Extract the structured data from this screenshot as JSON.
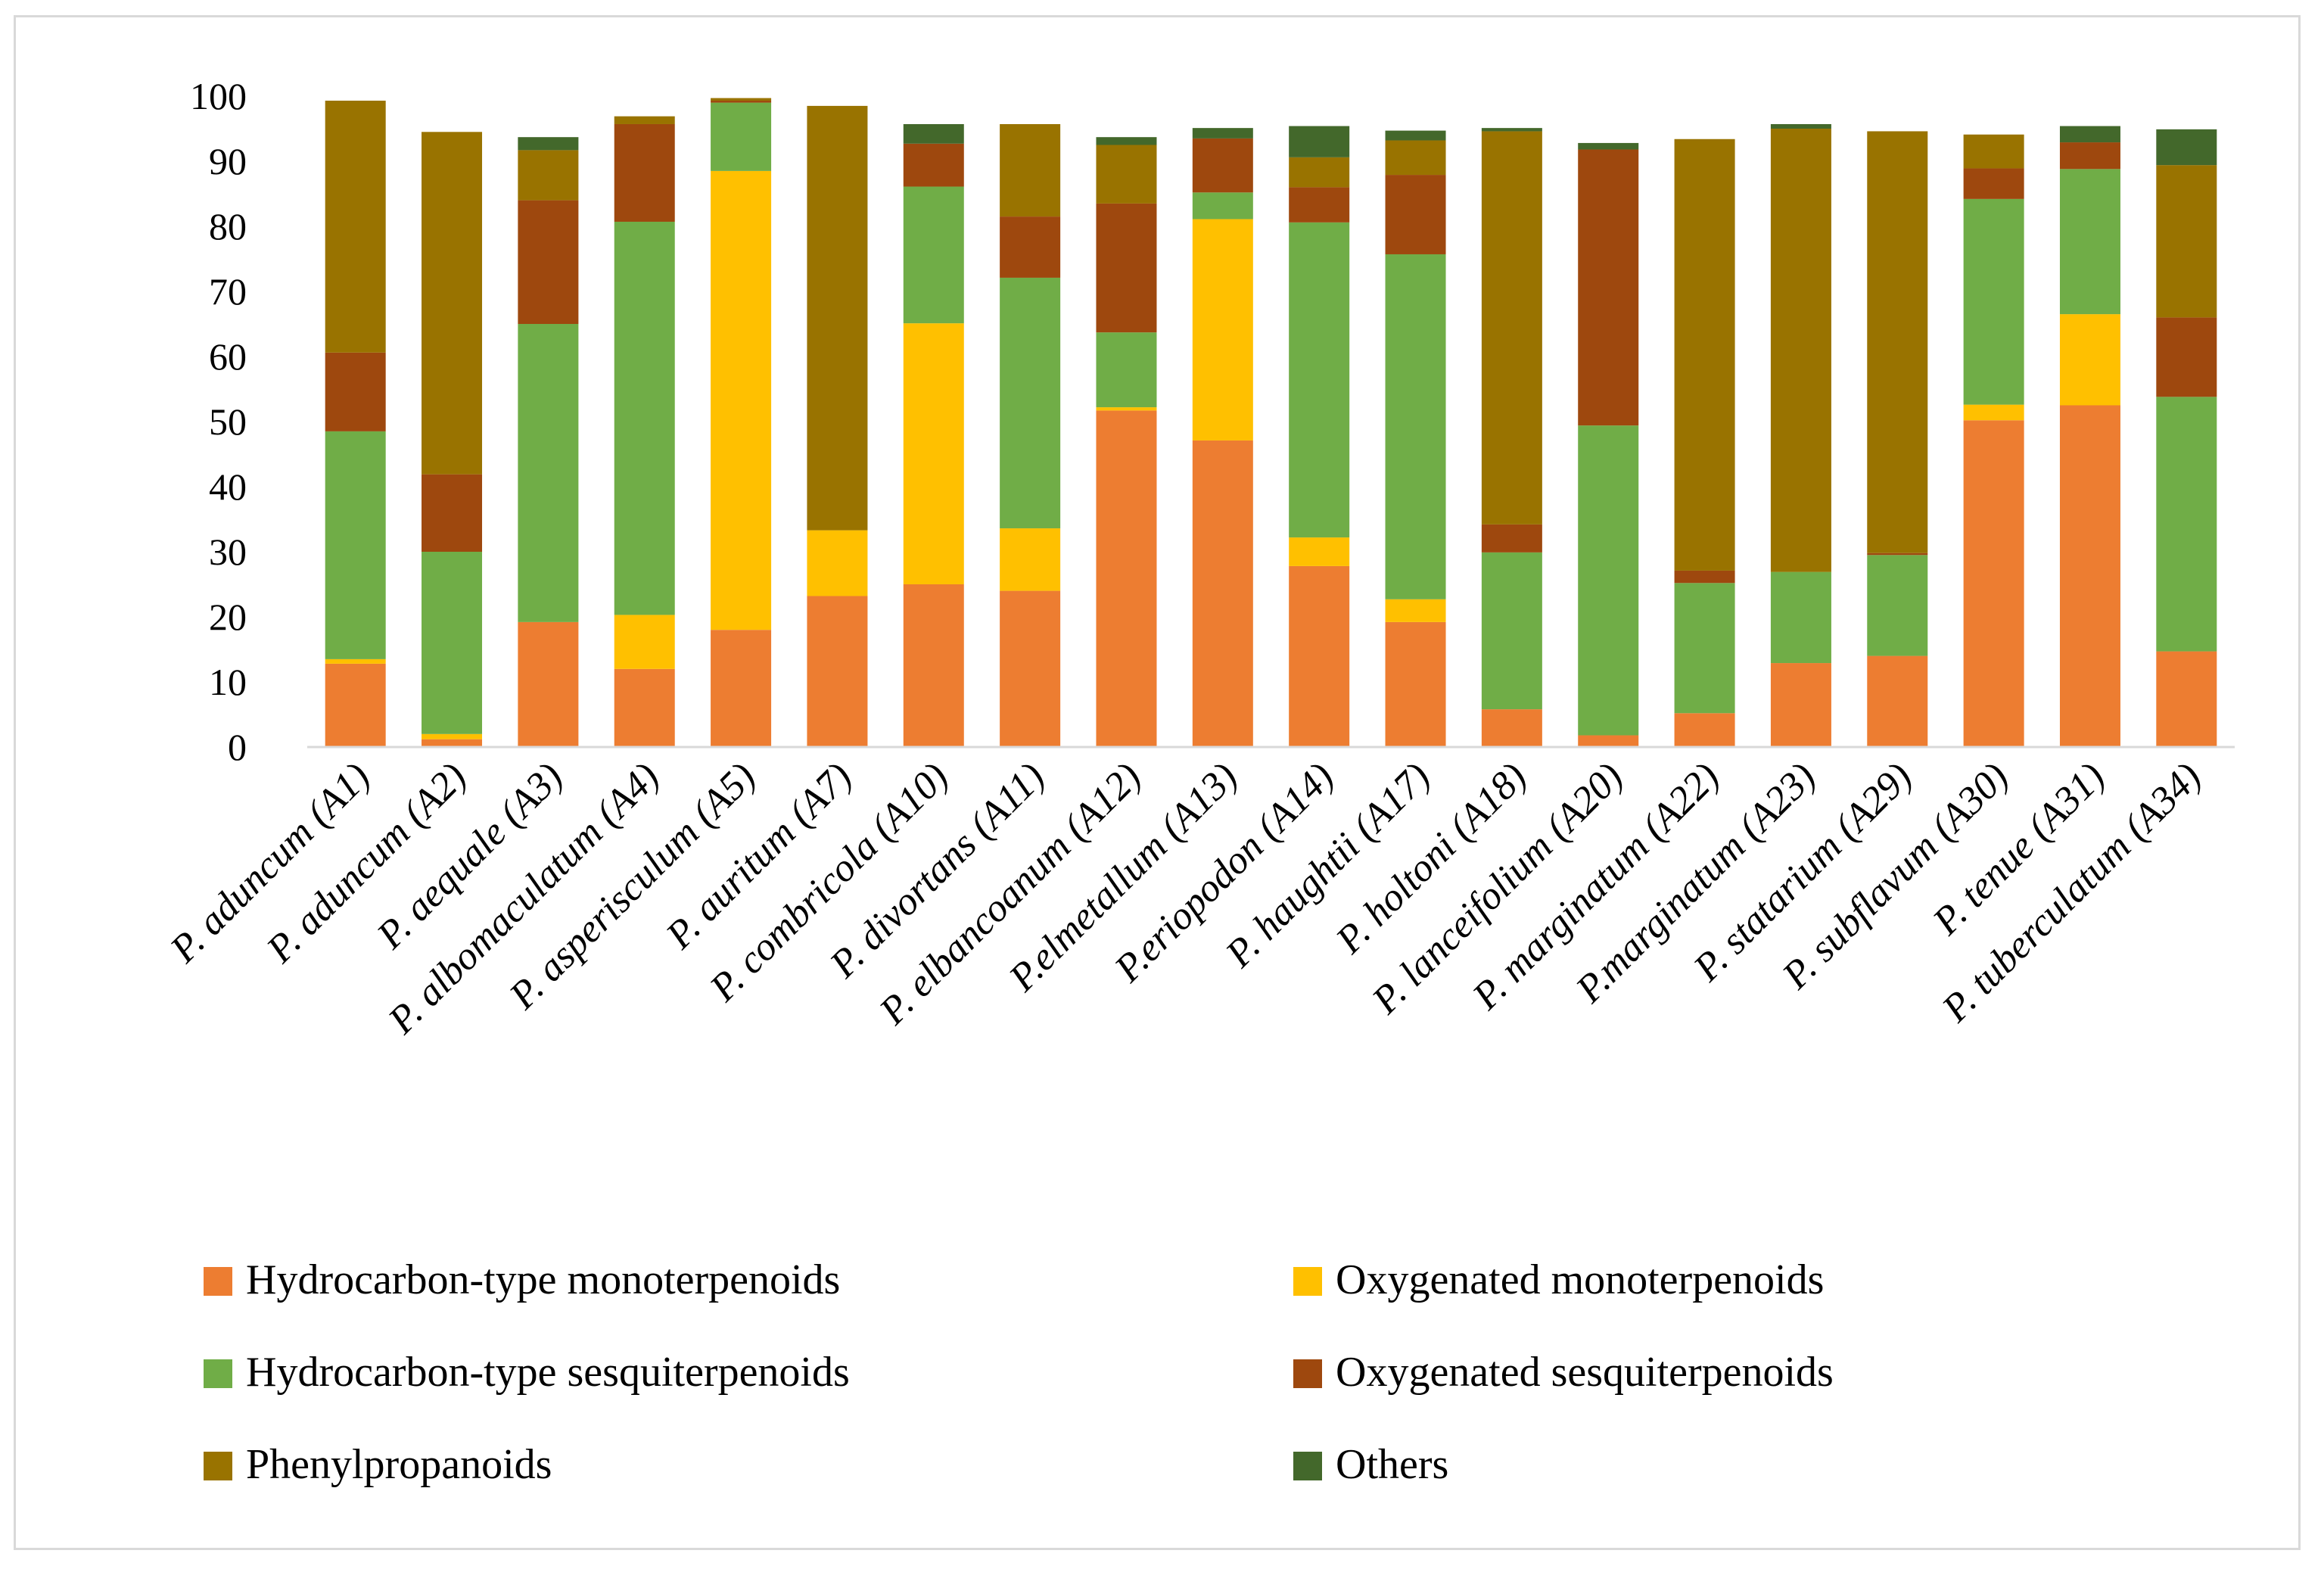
{
  "chart_data": {
    "type": "bar",
    "stacked": true,
    "title": "",
    "xlabel": "",
    "ylabel": "",
    "ylim": [
      0,
      100
    ],
    "yticks": [
      0,
      10,
      20,
      30,
      40,
      50,
      60,
      70,
      80,
      90,
      100
    ],
    "grid": false,
    "legend_position": "bottom",
    "categories": [
      "P. aduncum (A1)",
      "P. aduncum (A2)",
      "P. aequale (A3)",
      "P. albomaculatum (A4)",
      "P. asperisculum (A5)",
      "P. auritum (A7)",
      "P. combricola (A10)",
      "P. divortans (A11)",
      "P. elbancoanum (A12)",
      "P.elmetallum (A13)",
      "P.eriopodon (A14)",
      "P. haughtii (A17)",
      "P. holtoni (A18)",
      "P. lanceifolium (A20)",
      "P. marginatum (A22)",
      "P.marginatum (A23)",
      "P. statarium (A29)",
      "P. subflavum (A30)",
      "P. tenue (A31)",
      "P. tuberculatum (A34)"
    ],
    "series": [
      {
        "name": "Hydrocarbon-type monoterpenoids",
        "color": "#ED7D31",
        "values": [
          12.8,
          1.2,
          19.2,
          12.0,
          18.0,
          23.2,
          25.0,
          24.0,
          51.7,
          47.1,
          27.8,
          19.2,
          5.8,
          1.8,
          5.2,
          12.9,
          14.0,
          50.2,
          52.5,
          14.7
        ]
      },
      {
        "name": "Oxygenated monoterpenoids",
        "color": "#FFC000",
        "values": [
          0.7,
          0.8,
          0.0,
          8.3,
          70.5,
          10.1,
          40.1,
          9.6,
          0.5,
          34.0,
          4.4,
          3.5,
          0.0,
          0.0,
          0.0,
          0.0,
          0.0,
          2.4,
          14.0,
          0.0
        ]
      },
      {
        "name": "Hydrocarbon-type sesquiterpenoids",
        "color": "#70AD47",
        "values": [
          35.0,
          28.0,
          45.8,
          60.4,
          10.5,
          0.0,
          21.0,
          38.5,
          11.5,
          4.1,
          48.4,
          53.0,
          24.1,
          47.6,
          20.0,
          14.0,
          15.5,
          31.6,
          22.3,
          39.1
        ]
      },
      {
        "name": "Oxygenated sesquiterpenoids",
        "color": "#9E480E",
        "values": [
          12.1,
          11.9,
          19.0,
          15.0,
          0.3,
          0.0,
          6.6,
          9.4,
          19.8,
          8.3,
          5.4,
          12.2,
          4.3,
          42.4,
          1.9,
          0.0,
          0.3,
          4.7,
          4.1,
          12.2
        ]
      },
      {
        "name": "Phenylpropanoids",
        "color": "#997300",
        "values": [
          38.7,
          52.6,
          7.7,
          1.2,
          0.4,
          65.2,
          0.0,
          14.2,
          9.0,
          0.0,
          4.6,
          5.3,
          60.4,
          0.0,
          66.3,
          68.1,
          64.8,
          5.2,
          0.0,
          23.4
        ]
      },
      {
        "name": "Others",
        "color": "#43682B",
        "values": [
          0.0,
          0.0,
          2.0,
          0.0,
          0.0,
          0.0,
          3.0,
          0.0,
          1.2,
          1.6,
          4.8,
          1.5,
          0.5,
          1.0,
          0.0,
          0.7,
          0.0,
          0.0,
          2.5,
          5.5
        ]
      }
    ]
  }
}
